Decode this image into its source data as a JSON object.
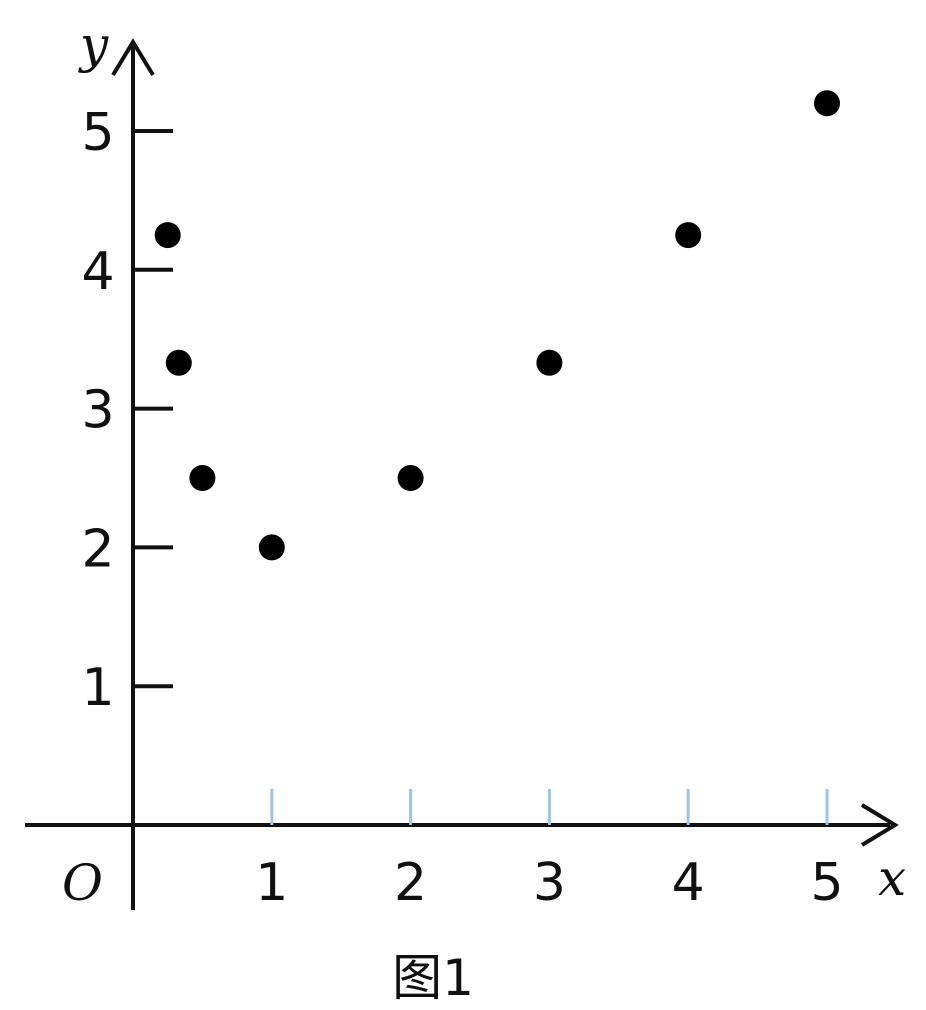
{
  "chart_data": {
    "type": "scatter",
    "caption": "图1",
    "xlabel": "x",
    "ylabel": "y",
    "origin_label": "O",
    "xlim": [
      0,
      5
    ],
    "ylim": [
      0,
      5
    ],
    "x_ticks": [
      1,
      2,
      3,
      4,
      5
    ],
    "y_ticks": [
      1,
      2,
      3,
      4,
      5
    ],
    "x_tick_labels": [
      "1",
      "2",
      "3",
      "4",
      "5"
    ],
    "y_tick_labels": [
      "1",
      "2",
      "3",
      "4",
      "5"
    ],
    "grid": false,
    "legend": "none",
    "points": [
      {
        "x": 0.25,
        "y": 4.25
      },
      {
        "x": 0.33,
        "y": 3.33
      },
      {
        "x": 0.5,
        "y": 2.5
      },
      {
        "x": 1,
        "y": 2
      },
      {
        "x": 2,
        "y": 2.5
      },
      {
        "x": 3,
        "y": 3.33
      },
      {
        "x": 4,
        "y": 4.25
      },
      {
        "x": 5,
        "y": 5.2
      }
    ],
    "point_color": "#000000",
    "axis_color": "#111111",
    "tick_mark_color": "#9fc4e6"
  }
}
